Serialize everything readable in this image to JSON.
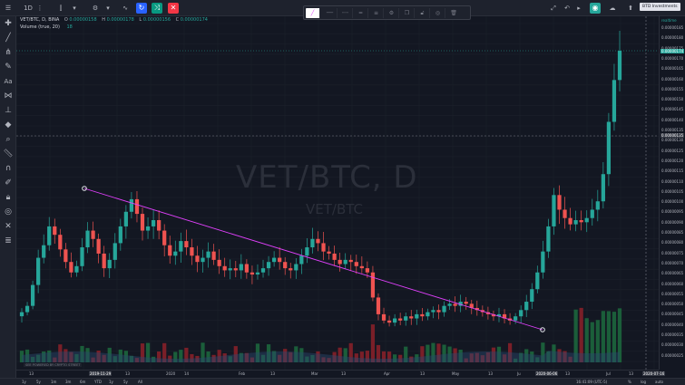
{
  "toolbar": {
    "interval": "1D",
    "tooltip": "BTD Investments"
  },
  "legend": {
    "symbol": "VET/BTC, D, BINA",
    "o_label": "O",
    "o_value": "0.00000158",
    "h_label": "H",
    "h_value": "0.00000178",
    "l_label": "L",
    "l_value": "0.00000156",
    "c_label": "C",
    "c_value": "0.00000174",
    "volume": "Volume (true, 20)",
    "volume_value": "18"
  },
  "watermark": {
    "title": "VET/BTC, D",
    "subtitle": "VET/BTC"
  },
  "price_axis": {
    "labels": [
      "0.00000185",
      "0.00000180",
      "0.00000175",
      "0.00000170",
      "0.00000165",
      "0.00000160",
      "0.00000155",
      "0.00000150",
      "0.00000145",
      "0.00000140",
      "0.00000135",
      "0.00000130",
      "0.00000125",
      "0.00000120",
      "0.00000115",
      "0.00000110",
      "0.00000105",
      "0.00000100",
      "0.00000095",
      "0.00000090",
      "0.00000085",
      "0.00000080",
      "0.00000075",
      "0.00000070",
      "0.00000065",
      "0.00000060",
      "0.00000055",
      "0.00000050",
      "0.00000045",
      "0.00000040",
      "0.00000035",
      "0.00000030",
      "0.00000025"
    ],
    "current_price": "0.00000174",
    "crosshair_price": "0.00000135",
    "realtime": "realtime"
  },
  "time_axis": {
    "labels": [
      "13",
      "2019-11-29",
      "13",
      "2020",
      "14",
      "Feb",
      "13",
      "Mar",
      "13",
      "Apr",
      "13",
      "May",
      "13",
      "Ju",
      "2020-06-06",
      "13",
      "Jul",
      "13",
      "2020-07-16"
    ]
  },
  "bottom_bar": {
    "ranges": [
      "1y",
      "5y",
      "1m",
      "3m",
      "6m",
      "YTD",
      "1y",
      "5y",
      "All"
    ],
    "time": "16:41:09 (UTC-5)",
    "percent": "%",
    "log": "log",
    "auto": "auto"
  },
  "sponsor": "SEE POWERED BY CRYPTO STREET",
  "chart_data": {
    "type": "candlestick",
    "symbol": "VET/BTC",
    "interval": "D",
    "period": [
      "2019-10",
      "2020-07"
    ],
    "ylim": [
      2.5e-07,
      1.87e-06
    ],
    "closes": [
      4.9e-07,
      5.2e-07,
      6.2e-07,
      7.5e-07,
      8.1e-07,
      9e-07,
      8.6e-07,
      7.9e-07,
      7.3e-07,
      6.8e-07,
      7.1e-07,
      8e-07,
      8.8e-07,
      8.4e-07,
      7.7e-07,
      7e-07,
      7.4e-07,
      8.2e-07,
      9e-07,
      9.7e-07,
      1.03e-06,
      9.6e-07,
      8.8e-07,
      9e-07,
      9.3e-07,
      8.8e-07,
      8.1e-07,
      7.6e-07,
      7.8e-07,
      8.3e-07,
      8e-07,
      7.6e-07,
      7.3e-07,
      7.5e-07,
      7.8e-07,
      7.4e-07,
      7.1e-07,
      6.9e-07,
      7e-07,
      6.9e-07,
      7.2e-07,
      6.8e-07,
      6.7e-07,
      6.8e-07,
      7e-07,
      7.3e-07,
      7.5e-07,
      7.3e-07,
      7e-07,
      6.9e-07,
      7.2e-07,
      7.6e-07,
      8e-07,
      8.4e-07,
      8.2e-07,
      7.8e-07,
      7.7e-07,
      7.4e-07,
      7.2e-07,
      7.4e-07,
      7.3e-07,
      7.1e-07,
      7e-07,
      6.8e-07,
      5.6e-07,
      4.8e-07,
      4.5e-07,
      4.4e-07,
      4.6e-07,
      4.5e-07,
      4.7e-07,
      4.6e-07,
      4.8e-07,
      4.7e-07,
      4.9e-07,
      5e-07,
      4.9e-07,
      5.2e-07,
      5.3e-07,
      5.2e-07,
      5.4e-07,
      5.3e-07,
      5.1e-07,
      5e-07,
      4.9e-07,
      4.8e-07,
      4.7e-07,
      4.8e-07,
      4.6e-07,
      4.5e-07,
      4.7e-07,
      5e-07,
      5.4e-07,
      6e-07,
      6.8e-07,
      7.8e-07,
      9e-07,
      1.05e-06,
      9.8e-07,
      9.4e-07,
      9.1e-07,
      9.3e-07,
      9.2e-07,
      9.4e-07,
      9.8e-07,
      1.02e-06,
      1.15e-06,
      1.4e-06,
      1.6e-06,
      1.74e-06
    ]
  }
}
